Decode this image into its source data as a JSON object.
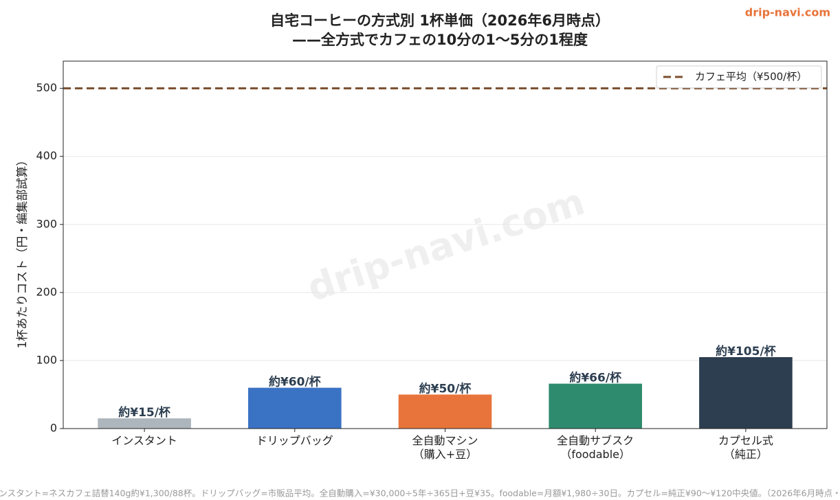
{
  "chart_data": {
    "type": "bar",
    "title": "自宅コーヒーの方式別 1杯単価（2026年6月時点）",
    "subtitle": "——全方式でカフェの10分の1〜5分の1程度",
    "ylabel": "1杯あたりコスト（円・編集部試算）",
    "categories": [
      "インスタント",
      "ドリップバッグ",
      "全自動マシン\n（購入+豆）",
      "全自動サブスク\n（foodable）",
      "カプセル式\n（純正）"
    ],
    "values": [
      15,
      60,
      50,
      66,
      105
    ],
    "value_labels": [
      "約¥15/杯",
      "約¥60/杯",
      "約¥50/杯",
      "約¥66/杯",
      "約¥105/杯"
    ],
    "colors": [
      "#adb5bd",
      "#3a72c4",
      "#e8743b",
      "#2e8b6e",
      "#2c3e50"
    ],
    "ylim": [
      0,
      540
    ],
    "yticks": [
      0,
      100,
      200,
      300,
      400,
      500
    ],
    "grid": true,
    "reference": {
      "value": 500,
      "label": "カフェ平均（¥500/杯）",
      "color": "#7b4f2e"
    },
    "legend": "upper right",
    "source_mark": "drip-navi.com",
    "footnote": "ンスタント=ネスカフェ詰替140g約¥1,300/88杯。ドリップバッグ=市販品平均。全自動購入=¥30,000÷5年÷365日+豆¥35。foodable=月額¥1,980÷30日。カプセル=純正¥90〜¥120中央値。（2026年6月時点・"
  }
}
